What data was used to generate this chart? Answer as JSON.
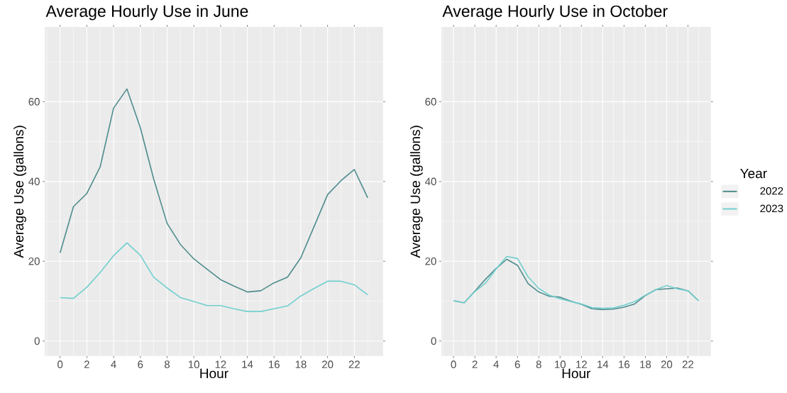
{
  "chart_data": [
    {
      "type": "line",
      "title": "Average Hourly Use in June",
      "xlabel": "Hour",
      "ylabel": "Average Use (gallons)",
      "x": [
        0,
        1,
        2,
        3,
        4,
        5,
        6,
        7,
        8,
        9,
        10,
        11,
        12,
        13,
        14,
        15,
        16,
        17,
        18,
        19,
        20,
        21,
        22,
        23
      ],
      "xlim": [
        -1.15,
        24.15
      ],
      "ylim": [
        -3.75,
        78.75
      ],
      "xticks": [
        0,
        2,
        4,
        6,
        8,
        10,
        12,
        14,
        16,
        18,
        20,
        22
      ],
      "yticks": [
        0,
        20,
        40,
        60
      ],
      "grid": true,
      "series": [
        {
          "color": "#4f8c8c",
          "values": [
            22.1,
            33.7,
            37.0,
            43.7,
            58.4,
            63.2,
            53.5,
            40.6,
            29.5,
            24.2,
            20.6,
            18.0,
            15.4,
            13.8,
            12.3,
            12.6,
            14.6,
            16.0,
            20.9,
            28.8,
            36.7,
            40.2,
            43.0,
            35.9
          ]
        },
        {
          "color": "#72cfcf",
          "values": [
            10.9,
            10.7,
            13.5,
            17.2,
            21.4,
            24.6,
            21.5,
            16.0,
            13.3,
            10.9,
            9.9,
            8.9,
            8.9,
            8.1,
            7.4,
            7.4,
            8.1,
            8.8,
            11.3,
            13.2,
            15.0,
            15.0,
            14.1,
            11.6
          ]
        }
      ]
    },
    {
      "type": "line",
      "title": "Average Hourly Use in October",
      "xlabel": "Hour",
      "ylabel": "Average Use (gallons)",
      "x": [
        0,
        1,
        2,
        3,
        4,
        5,
        6,
        7,
        8,
        9,
        10,
        11,
        12,
        13,
        14,
        15,
        16,
        17,
        18,
        19,
        20,
        21,
        22,
        23
      ],
      "xlim": [
        -1.15,
        24.15
      ],
      "ylim": [
        -3.75,
        78.75
      ],
      "xticks": [
        0,
        2,
        4,
        6,
        8,
        10,
        12,
        14,
        16,
        18,
        20,
        22
      ],
      "yticks": [
        0,
        20,
        40,
        60
      ],
      "grid": true,
      "legend": "right",
      "legend_title": "Year",
      "series": [
        {
          "name": "2022",
          "color": "#4f8c8c",
          "values": [
            10.1,
            9.6,
            12.5,
            15.5,
            18.2,
            20.5,
            19.0,
            14.4,
            12.3,
            11.2,
            11.0,
            10.0,
            9.2,
            8.1,
            7.9,
            8.0,
            8.5,
            9.3,
            11.4,
            12.9,
            13.1,
            13.3,
            12.6,
            10.1
          ]
        },
        {
          "name": "2023",
          "color": "#72cfcf",
          "values": [
            10.1,
            9.6,
            12.4,
            14.5,
            18.1,
            21.2,
            20.7,
            16.1,
            13.2,
            11.5,
            10.6,
            9.9,
            9.3,
            8.4,
            8.2,
            8.3,
            9.0,
            9.9,
            11.5,
            12.9,
            13.9,
            13.1,
            12.6,
            10.1
          ]
        }
      ]
    }
  ]
}
